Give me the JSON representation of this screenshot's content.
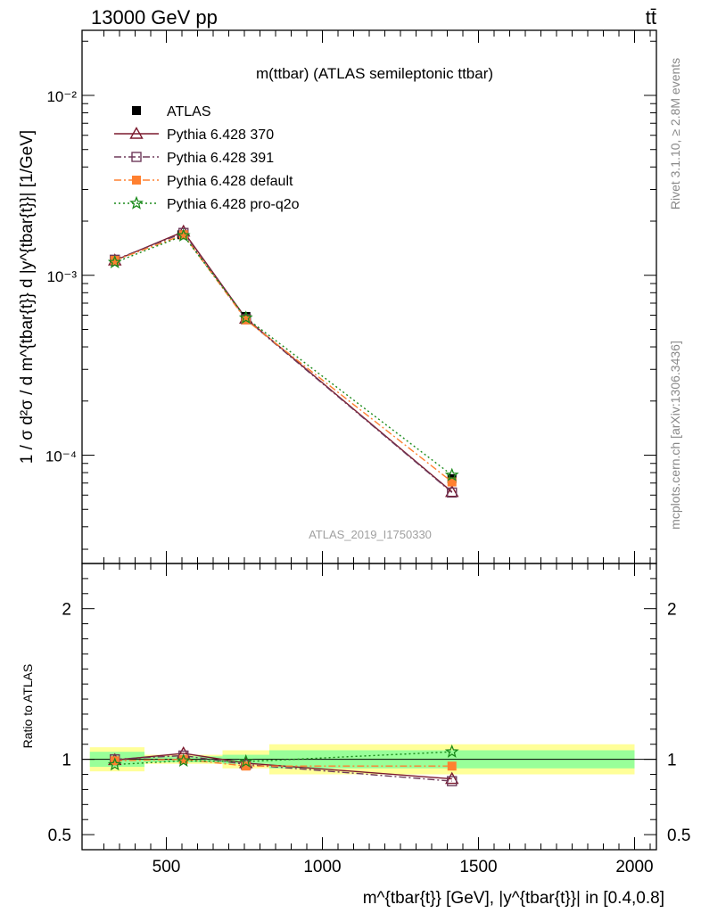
{
  "header": {
    "energy_label": "13000 GeV pp",
    "process_label": "tt̄"
  },
  "side_labels": {
    "rivet": "Rivet 3.1.10, ≥ 2.8M events",
    "mcplots": "mcplots.cern.ch [arXiv:1306.3436]"
  },
  "chart_data": [
    {
      "type": "line",
      "panel": "main",
      "title": "m(ttbar) (ATLAS semileptonic ttbar)",
      "watermark": "ATLAS_2019_I1750330",
      "ylabel": "1 / σ d²σ / d m^{tbar{t}} d |y^{tbar{t}}| [1/GeV]",
      "y_scale": "log",
      "ylim": [
        2.5e-05,
        0.023
      ],
      "xlim": [
        230,
        2070
      ],
      "y_ticks": [
        {
          "value": 0.0001,
          "label": "10⁻⁴"
        },
        {
          "value": 0.001,
          "label": "10⁻³"
        },
        {
          "value": 0.01,
          "label": "10⁻²"
        }
      ],
      "legend_position": "top-left",
      "series": [
        {
          "name": "ATLAS",
          "color": "#000000",
          "marker": "square",
          "line": "none",
          "x": [
            335,
            550,
            755,
            1415
          ],
          "y": [
            0.00122,
            0.00168,
            0.00059,
            7.4e-05
          ]
        },
        {
          "name": "Pythia 6.428 370",
          "color": "#7b1a2e",
          "marker": "triangle-open",
          "line": "solid",
          "x": [
            335,
            555,
            755,
            1415
          ],
          "y": [
            0.00121,
            0.00175,
            0.000575,
            6.25e-05
          ]
        },
        {
          "name": "Pythia 6.428 391",
          "color": "#6e3a5a",
          "marker": "square-open",
          "line": "dashdot",
          "x": [
            335,
            555,
            755,
            1415
          ],
          "y": [
            0.00122,
            0.00172,
            0.00057,
            6.2e-05
          ]
        },
        {
          "name": "Pythia 6.428 default",
          "color": "#ff8030",
          "marker": "square",
          "line": "dashdot",
          "x": [
            335,
            555,
            755,
            1415
          ],
          "y": [
            0.00121,
            0.00168,
            0.000565,
            7.1e-05
          ]
        },
        {
          "name": "Pythia 6.428 pro-q2o",
          "color": "#1a8a1a",
          "marker": "star",
          "line": "dotted",
          "x": [
            335,
            555,
            755,
            1415
          ],
          "y": [
            0.00118,
            0.00166,
            0.00058,
            7.75e-05
          ]
        }
      ]
    },
    {
      "type": "line",
      "panel": "ratio",
      "ylabel": "Ratio to ATLAS",
      "xlabel": "m^{tbar{t}} [GeV], |y^{tbar{t}}| in [0.4,0.8]",
      "ylim": [
        0.4,
        2.3
      ],
      "xlim": [
        230,
        2070
      ],
      "x_ticks": [
        500,
        1000,
        1500,
        2000
      ],
      "y_ticks": [
        {
          "value": 0.5,
          "label": "0.5"
        },
        {
          "value": 1,
          "label": "1"
        },
        {
          "value": 2,
          "label": "2"
        }
      ],
      "uncertainty_bands": [
        {
          "x0": 255,
          "x1": 430,
          "green": [
            0.95,
            1.05
          ],
          "yellow": [
            0.92,
            1.08
          ]
        },
        {
          "x0": 430,
          "x1": 680,
          "green": [
            0.98,
            1.02
          ],
          "yellow": [
            0.97,
            1.03
          ]
        },
        {
          "x0": 680,
          "x1": 830,
          "green": [
            0.97,
            1.03
          ],
          "yellow": [
            0.94,
            1.06
          ]
        },
        {
          "x0": 830,
          "x1": 2000,
          "green": [
            0.94,
            1.06
          ],
          "yellow": [
            0.9,
            1.1
          ]
        }
      ],
      "series": [
        {
          "name": "Pythia 6.428 370",
          "color": "#7b1a2e",
          "marker": "triangle-open",
          "line": "solid",
          "x": [
            335,
            555,
            755,
            1415
          ],
          "y": [
            0.995,
            1.04,
            0.975,
            0.87
          ]
        },
        {
          "name": "Pythia 6.428 391",
          "color": "#6e3a5a",
          "marker": "square-open",
          "line": "dashdot",
          "x": [
            335,
            555,
            755,
            1415
          ],
          "y": [
            1.0,
            1.025,
            0.965,
            0.855
          ]
        },
        {
          "name": "Pythia 6.428 default",
          "color": "#ff8030",
          "marker": "square",
          "line": "dashdot",
          "x": [
            335,
            555,
            755,
            1415
          ],
          "y": [
            0.99,
            1.0,
            0.955,
            0.955
          ]
        },
        {
          "name": "Pythia 6.428 pro-q2o",
          "color": "#1a8a1a",
          "marker": "star",
          "line": "dotted",
          "x": [
            335,
            555,
            755,
            1415
          ],
          "y": [
            0.965,
            0.99,
            0.985,
            1.05
          ]
        }
      ]
    }
  ]
}
